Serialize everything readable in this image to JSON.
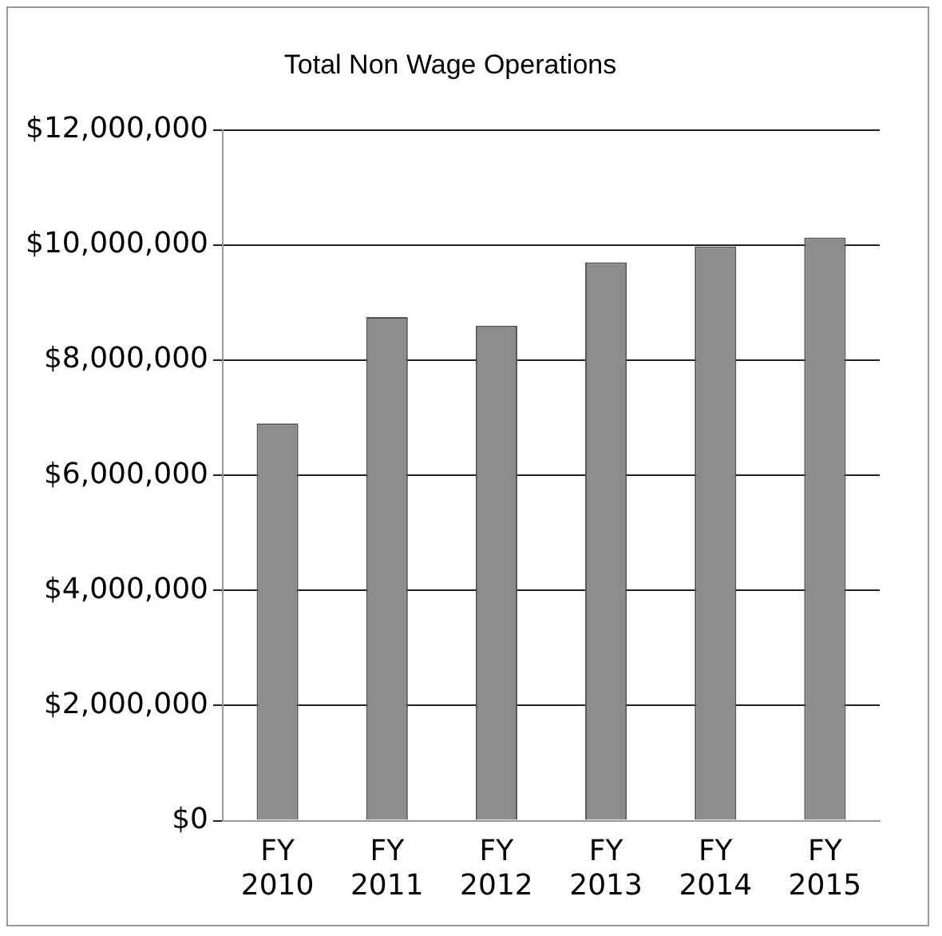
{
  "chart_data": {
    "type": "bar",
    "title": "Total Non Wage Operations",
    "categories": [
      "FY 2010",
      "FY 2011",
      "FY 2012",
      "FY 2013",
      "FY 2014",
      "FY 2015"
    ],
    "values": [
      6900000,
      8750000,
      8600000,
      9700000,
      9980000,
      10130000
    ],
    "color": "#8c8c8c",
    "ylim": [
      0,
      12000000
    ],
    "yticks": [
      {
        "value": 0,
        "label": "$0"
      },
      {
        "value": 2000000,
        "label": "$2,000,000"
      },
      {
        "value": 4000000,
        "label": "$4,000,000"
      },
      {
        "value": 6000000,
        "label": "$6,000,000"
      },
      {
        "value": 8000000,
        "label": "$8,000,000"
      },
      {
        "value": 10000000,
        "label": "$10,000,000"
      },
      {
        "value": 12000000,
        "label": "$12,000,000"
      }
    ],
    "grid": "y",
    "legend": false
  }
}
